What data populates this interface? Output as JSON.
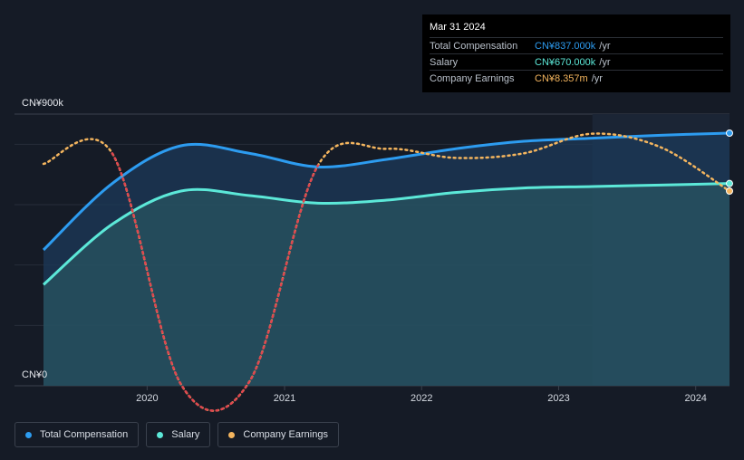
{
  "tooltip": {
    "date": "Mar 31 2024",
    "rows": [
      {
        "label": "Total Compensation",
        "value": "CN¥837.000k",
        "unit": "/yr"
      },
      {
        "label": "Salary",
        "value": "CN¥670.000k",
        "unit": "/yr"
      },
      {
        "label": "Company Earnings",
        "value": "CN¥8.357m",
        "unit": "/yr"
      }
    ]
  },
  "axis": {
    "y_max_label": "CN¥900k",
    "y_min_label": "CN¥0",
    "x_ticks": [
      "2020",
      "2021",
      "2022",
      "2023",
      "2024"
    ]
  },
  "legend": [
    {
      "label": "Total Compensation",
      "color": "#2d9cf0"
    },
    {
      "label": "Salary",
      "color": "#5ce8d8"
    },
    {
      "label": "Company Earnings",
      "color": "#f4b55e"
    }
  ],
  "colors": {
    "total": "#2d9cf0",
    "salary": "#5ce8d8",
    "earnings": "#f4b55e",
    "earnings_negative": "#e0464f",
    "background": "#151b26"
  },
  "chart_data": {
    "type": "area",
    "x_range": [
      "2019-03-31",
      "2024-03-31"
    ],
    "ylim": [
      0,
      900
    ],
    "y_unit": "CN¥k",
    "series": [
      {
        "name": "Total Compensation",
        "x": [
          "2019-03-31",
          "2019-09-30",
          "2020-03-31",
          "2020-09-30",
          "2021-03-31",
          "2021-09-30",
          "2022-03-31",
          "2022-09-30",
          "2023-03-31",
          "2023-09-30",
          "2024-03-31"
        ],
        "values": [
          450,
          670,
          795,
          770,
          725,
          750,
          785,
          810,
          820,
          830,
          837
        ]
      },
      {
        "name": "Salary",
        "x": [
          "2019-03-31",
          "2019-09-30",
          "2020-03-31",
          "2020-09-30",
          "2021-03-31",
          "2021-09-30",
          "2022-03-31",
          "2022-09-30",
          "2023-03-31",
          "2023-09-30",
          "2024-03-31"
        ],
        "values": [
          335,
          535,
          645,
          630,
          605,
          615,
          640,
          655,
          660,
          665,
          670
        ]
      },
      {
        "name": "Company Earnings",
        "x": [
          "2019-03-31",
          "2019-09-30",
          "2020-03-31",
          "2020-09-30",
          "2021-03-31",
          "2021-09-30",
          "2022-03-31",
          "2022-09-30",
          "2023-03-31",
          "2023-09-30",
          "2024-03-31"
        ],
        "values": [
          735,
          770,
          5,
          15,
          730,
          785,
          755,
          770,
          835,
          790,
          645
        ]
      }
    ]
  }
}
